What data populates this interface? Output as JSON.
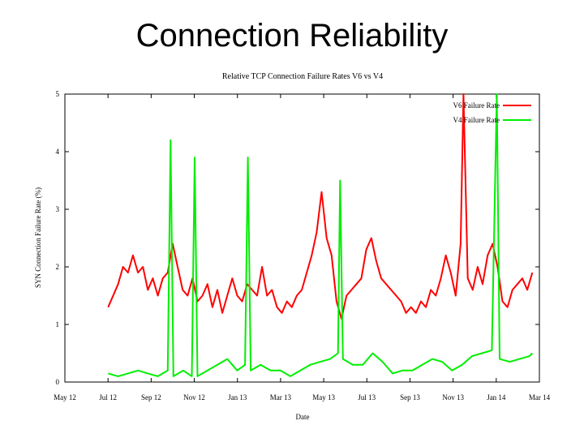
{
  "slide": {
    "title": "Connection Reliability"
  },
  "chart_data": {
    "type": "line",
    "title": "Relative TCP Connection Failure Rates V6 vs V4",
    "xlabel": "Date",
    "ylabel": "SYN Connection Failure Rate (%)",
    "ylim": [
      0,
      5
    ],
    "yticks": [
      "0",
      "1",
      "2",
      "3",
      "4",
      "5"
    ],
    "xticks": [
      "May 12",
      "Jul 12",
      "Sep 12",
      "Nov 12",
      "Jan 13",
      "Mar 13",
      "May 13",
      "Jul 13",
      "Sep 13",
      "Nov 13",
      "Jan 14",
      "Mar 14"
    ],
    "xlim": [
      "2012-05-01",
      "2014-03-01"
    ],
    "legend_position": "top-right",
    "grid": false,
    "series": [
      {
        "name": "V6 Failure Rate",
        "color": "#ff0000",
        "points": [
          [
            "2012-07-01",
            1.3
          ],
          [
            "2012-07-08",
            1.5
          ],
          [
            "2012-07-15",
            1.7
          ],
          [
            "2012-07-22",
            2.0
          ],
          [
            "2012-07-29",
            1.9
          ],
          [
            "2012-08-05",
            2.2
          ],
          [
            "2012-08-12",
            1.9
          ],
          [
            "2012-08-19",
            2.0
          ],
          [
            "2012-08-26",
            1.6
          ],
          [
            "2012-09-02",
            1.8
          ],
          [
            "2012-09-09",
            1.5
          ],
          [
            "2012-09-16",
            1.8
          ],
          [
            "2012-09-23",
            1.9
          ],
          [
            "2012-09-30",
            2.4
          ],
          [
            "2012-10-07",
            2.0
          ],
          [
            "2012-10-14",
            1.6
          ],
          [
            "2012-10-21",
            1.5
          ],
          [
            "2012-10-28",
            1.8
          ],
          [
            "2012-11-04",
            1.4
          ],
          [
            "2012-11-11",
            1.5
          ],
          [
            "2012-11-18",
            1.7
          ],
          [
            "2012-11-25",
            1.3
          ],
          [
            "2012-12-02",
            1.6
          ],
          [
            "2012-12-09",
            1.2
          ],
          [
            "2012-12-16",
            1.5
          ],
          [
            "2012-12-23",
            1.8
          ],
          [
            "2012-12-30",
            1.5
          ],
          [
            "2013-01-06",
            1.4
          ],
          [
            "2013-01-13",
            1.7
          ],
          [
            "2013-01-20",
            1.6
          ],
          [
            "2013-01-27",
            1.5
          ],
          [
            "2013-02-03",
            2.0
          ],
          [
            "2013-02-10",
            1.5
          ],
          [
            "2013-02-17",
            1.6
          ],
          [
            "2013-02-24",
            1.3
          ],
          [
            "2013-03-03",
            1.2
          ],
          [
            "2013-03-10",
            1.4
          ],
          [
            "2013-03-17",
            1.3
          ],
          [
            "2013-03-24",
            1.5
          ],
          [
            "2013-03-31",
            1.6
          ],
          [
            "2013-04-07",
            1.9
          ],
          [
            "2013-04-14",
            2.2
          ],
          [
            "2013-04-21",
            2.6
          ],
          [
            "2013-04-28",
            3.3
          ],
          [
            "2013-05-05",
            2.5
          ],
          [
            "2013-05-12",
            2.2
          ],
          [
            "2013-05-19",
            1.4
          ],
          [
            "2013-05-26",
            1.1
          ],
          [
            "2013-06-02",
            1.5
          ],
          [
            "2013-06-09",
            1.6
          ],
          [
            "2013-06-16",
            1.7
          ],
          [
            "2013-06-23",
            1.8
          ],
          [
            "2013-06-30",
            2.3
          ],
          [
            "2013-07-07",
            2.5
          ],
          [
            "2013-07-14",
            2.1
          ],
          [
            "2013-07-21",
            1.8
          ],
          [
            "2013-07-28",
            1.7
          ],
          [
            "2013-08-04",
            1.6
          ],
          [
            "2013-08-11",
            1.5
          ],
          [
            "2013-08-18",
            1.4
          ],
          [
            "2013-08-25",
            1.2
          ],
          [
            "2013-09-01",
            1.3
          ],
          [
            "2013-09-08",
            1.2
          ],
          [
            "2013-09-15",
            1.4
          ],
          [
            "2013-09-22",
            1.3
          ],
          [
            "2013-09-29",
            1.6
          ],
          [
            "2013-10-06",
            1.5
          ],
          [
            "2013-10-13",
            1.8
          ],
          [
            "2013-10-20",
            2.2
          ],
          [
            "2013-10-27",
            1.9
          ],
          [
            "2013-11-03",
            1.5
          ],
          [
            "2013-11-10",
            2.4
          ],
          [
            "2013-11-14",
            5.0
          ],
          [
            "2013-11-20",
            1.8
          ],
          [
            "2013-11-27",
            1.6
          ],
          [
            "2013-12-04",
            2.0
          ],
          [
            "2013-12-11",
            1.7
          ],
          [
            "2013-12-18",
            2.2
          ],
          [
            "2013-12-25",
            2.4
          ],
          [
            "2014-01-01",
            2.0
          ],
          [
            "2014-01-08",
            1.4
          ],
          [
            "2014-01-15",
            1.3
          ],
          [
            "2014-01-22",
            1.6
          ],
          [
            "2014-01-29",
            1.7
          ],
          [
            "2014-02-05",
            1.8
          ],
          [
            "2014-02-12",
            1.6
          ],
          [
            "2014-02-19",
            1.9
          ]
        ]
      },
      {
        "name": "V4 Failure Rate",
        "color": "#00ee00",
        "points": [
          [
            "2012-07-01",
            0.15
          ],
          [
            "2012-07-15",
            0.1
          ],
          [
            "2012-07-29",
            0.15
          ],
          [
            "2012-08-12",
            0.2
          ],
          [
            "2012-08-26",
            0.15
          ],
          [
            "2012-09-09",
            0.1
          ],
          [
            "2012-09-23",
            0.2
          ],
          [
            "2012-09-27",
            4.2
          ],
          [
            "2012-10-01",
            0.1
          ],
          [
            "2012-10-15",
            0.2
          ],
          [
            "2012-10-27",
            0.1
          ],
          [
            "2012-10-31",
            3.9
          ],
          [
            "2012-11-04",
            0.1
          ],
          [
            "2012-11-18",
            0.2
          ],
          [
            "2012-12-02",
            0.3
          ],
          [
            "2012-12-16",
            0.4
          ],
          [
            "2012-12-30",
            0.2
          ],
          [
            "2013-01-10",
            0.3
          ],
          [
            "2013-01-14",
            3.9
          ],
          [
            "2013-01-18",
            0.2
          ],
          [
            "2013-02-01",
            0.3
          ],
          [
            "2013-02-15",
            0.2
          ],
          [
            "2013-03-01",
            0.2
          ],
          [
            "2013-03-15",
            0.1
          ],
          [
            "2013-03-29",
            0.2
          ],
          [
            "2013-04-12",
            0.3
          ],
          [
            "2013-04-26",
            0.35
          ],
          [
            "2013-05-10",
            0.4
          ],
          [
            "2013-05-21",
            0.5
          ],
          [
            "2013-05-24",
            3.5
          ],
          [
            "2013-05-28",
            0.4
          ],
          [
            "2013-06-11",
            0.3
          ],
          [
            "2013-06-25",
            0.3
          ],
          [
            "2013-07-09",
            0.5
          ],
          [
            "2013-07-23",
            0.35
          ],
          [
            "2013-08-06",
            0.15
          ],
          [
            "2013-08-20",
            0.2
          ],
          [
            "2013-09-03",
            0.2
          ],
          [
            "2013-09-17",
            0.3
          ],
          [
            "2013-10-01",
            0.4
          ],
          [
            "2013-10-15",
            0.35
          ],
          [
            "2013-10-29",
            0.2
          ],
          [
            "2013-11-12",
            0.3
          ],
          [
            "2013-11-26",
            0.45
          ],
          [
            "2013-12-10",
            0.5
          ],
          [
            "2013-12-24",
            0.55
          ],
          [
            "2013-12-31",
            5.0
          ],
          [
            "2014-01-04",
            0.4
          ],
          [
            "2014-01-18",
            0.35
          ],
          [
            "2014-02-01",
            0.4
          ],
          [
            "2014-02-15",
            0.45
          ],
          [
            "2014-02-19",
            0.5
          ]
        ]
      }
    ]
  }
}
